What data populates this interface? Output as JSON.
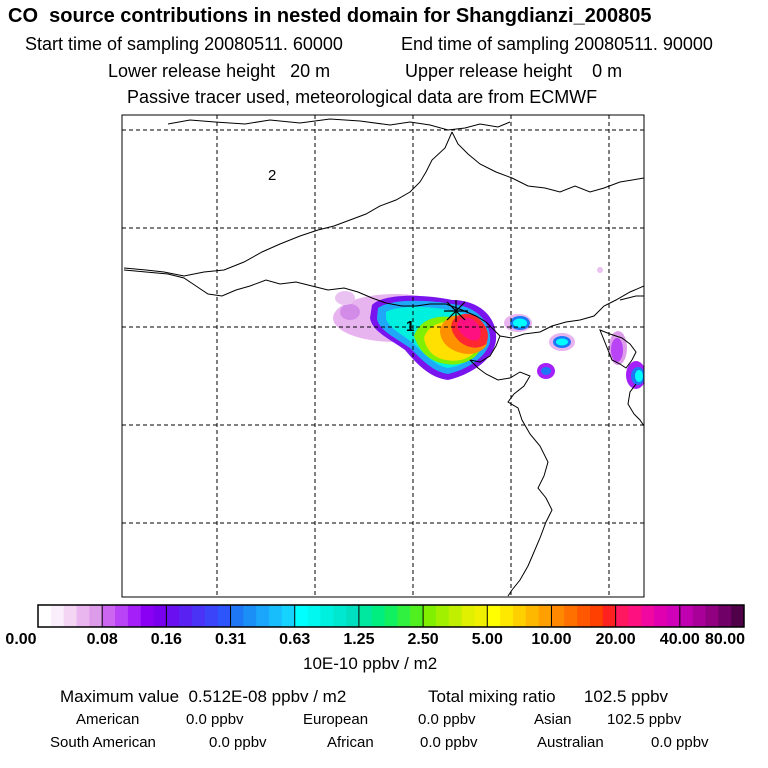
{
  "header": {
    "title": "CO  source contributions in nested domain for Shangdianzi_200805",
    "start_time": "Start time of sampling 20080511. 60000",
    "end_time": "End time of sampling 20080511. 90000",
    "lower_release": "Lower release height   20 m",
    "upper_release": "Upper release height    0 m",
    "tracer_info": "Passive tracer used, meteorological data are from ECMWF"
  },
  "map": {
    "region_labels": [
      "2",
      "1"
    ],
    "receptor": "Shangdianzi",
    "frame_color": "#000000",
    "grid_style": "dashed"
  },
  "colorbar": {
    "tick_labels": [
      "0.00",
      "0.08",
      "0.16",
      "0.31",
      "0.63",
      "1.25",
      "2.50",
      "5.00",
      "10.00",
      "20.00",
      "40.00",
      "80.00"
    ],
    "units": "10E-10 ppbv / m2",
    "segment_colors": [
      [
        "#ffffff",
        "#fbeefb",
        "#f4d6f4",
        "#eab6ef",
        "#dd9cea"
      ],
      [
        "#cc66f0",
        "#b844f5",
        "#a51ff8",
        "#8a00f5",
        "#7800ee"
      ],
      [
        "#6a10f0",
        "#5a22f2",
        "#4a33f5",
        "#3b44f8",
        "#2c55fb"
      ],
      [
        "#1e78f5",
        "#1c8ff7",
        "#1aa6fa",
        "#18bdfc",
        "#16d3fe"
      ],
      [
        "#00ffff",
        "#00f8f0",
        "#00f0e0",
        "#00e8d0",
        "#00e0c0"
      ],
      [
        "#00e8a0",
        "#00ee80",
        "#10f060",
        "#30f040",
        "#50f020"
      ],
      [
        "#80f000",
        "#a0f000",
        "#c0f000",
        "#e0f000",
        "#f0f000"
      ],
      [
        "#ffff00",
        "#ffe800",
        "#ffd000",
        "#ffb800",
        "#ffa000"
      ],
      [
        "#ff8800",
        "#ff7000",
        "#ff5800",
        "#ff4000",
        "#ff2020"
      ],
      [
        "#ff1860",
        "#ff1080",
        "#f008a0",
        "#e000b0",
        "#d000b8"
      ],
      [
        "#c000b0",
        "#a80098",
        "#900080",
        "#700068",
        "#500048"
      ]
    ]
  },
  "summary": {
    "max_value": "Maximum value  0.512E-08 ppbv / m2",
    "total_mixing": "Total mixing ratio      102.5 ppbv",
    "regions_row1": [
      {
        "label": "American",
        "value": "0.0 ppbv"
      },
      {
        "label": "European",
        "value": "0.0 ppbv"
      },
      {
        "label": "Asian",
        "value": "102.5 ppbv"
      }
    ],
    "regions_row2": [
      {
        "label": "South American",
        "value": "0.0 ppbv"
      },
      {
        "label": "African",
        "value": "0.0 ppbv"
      },
      {
        "label": "Australian",
        "value": "0.0 ppbv"
      }
    ]
  }
}
